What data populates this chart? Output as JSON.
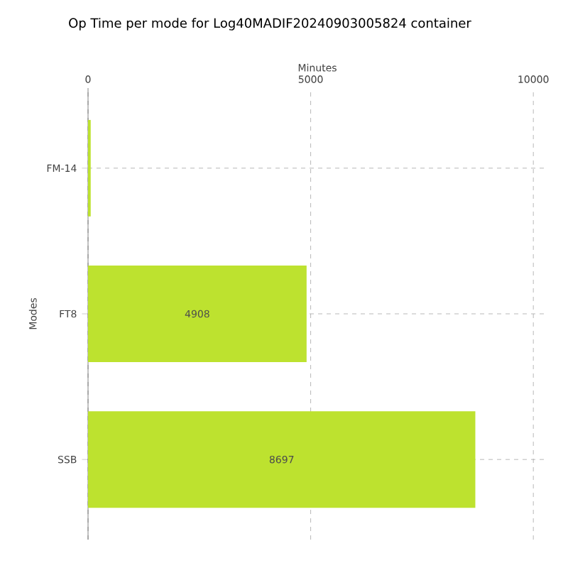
{
  "chart_data": {
    "type": "bar",
    "orientation": "horizontal",
    "title": "Op Time per mode for Log40MADIF20240903005824 container",
    "xlabel": "Minutes",
    "ylabel": "Modes",
    "categories": [
      "FM-14",
      "FT8",
      "SSB"
    ],
    "values": [
      60,
      4908,
      8697
    ],
    "value_labels": [
      null,
      "4908",
      "8697"
    ],
    "color": "#bde22f",
    "xlim": [
      0,
      10300
    ],
    "xticks": [
      0,
      5000,
      10000
    ],
    "grid": true
  }
}
